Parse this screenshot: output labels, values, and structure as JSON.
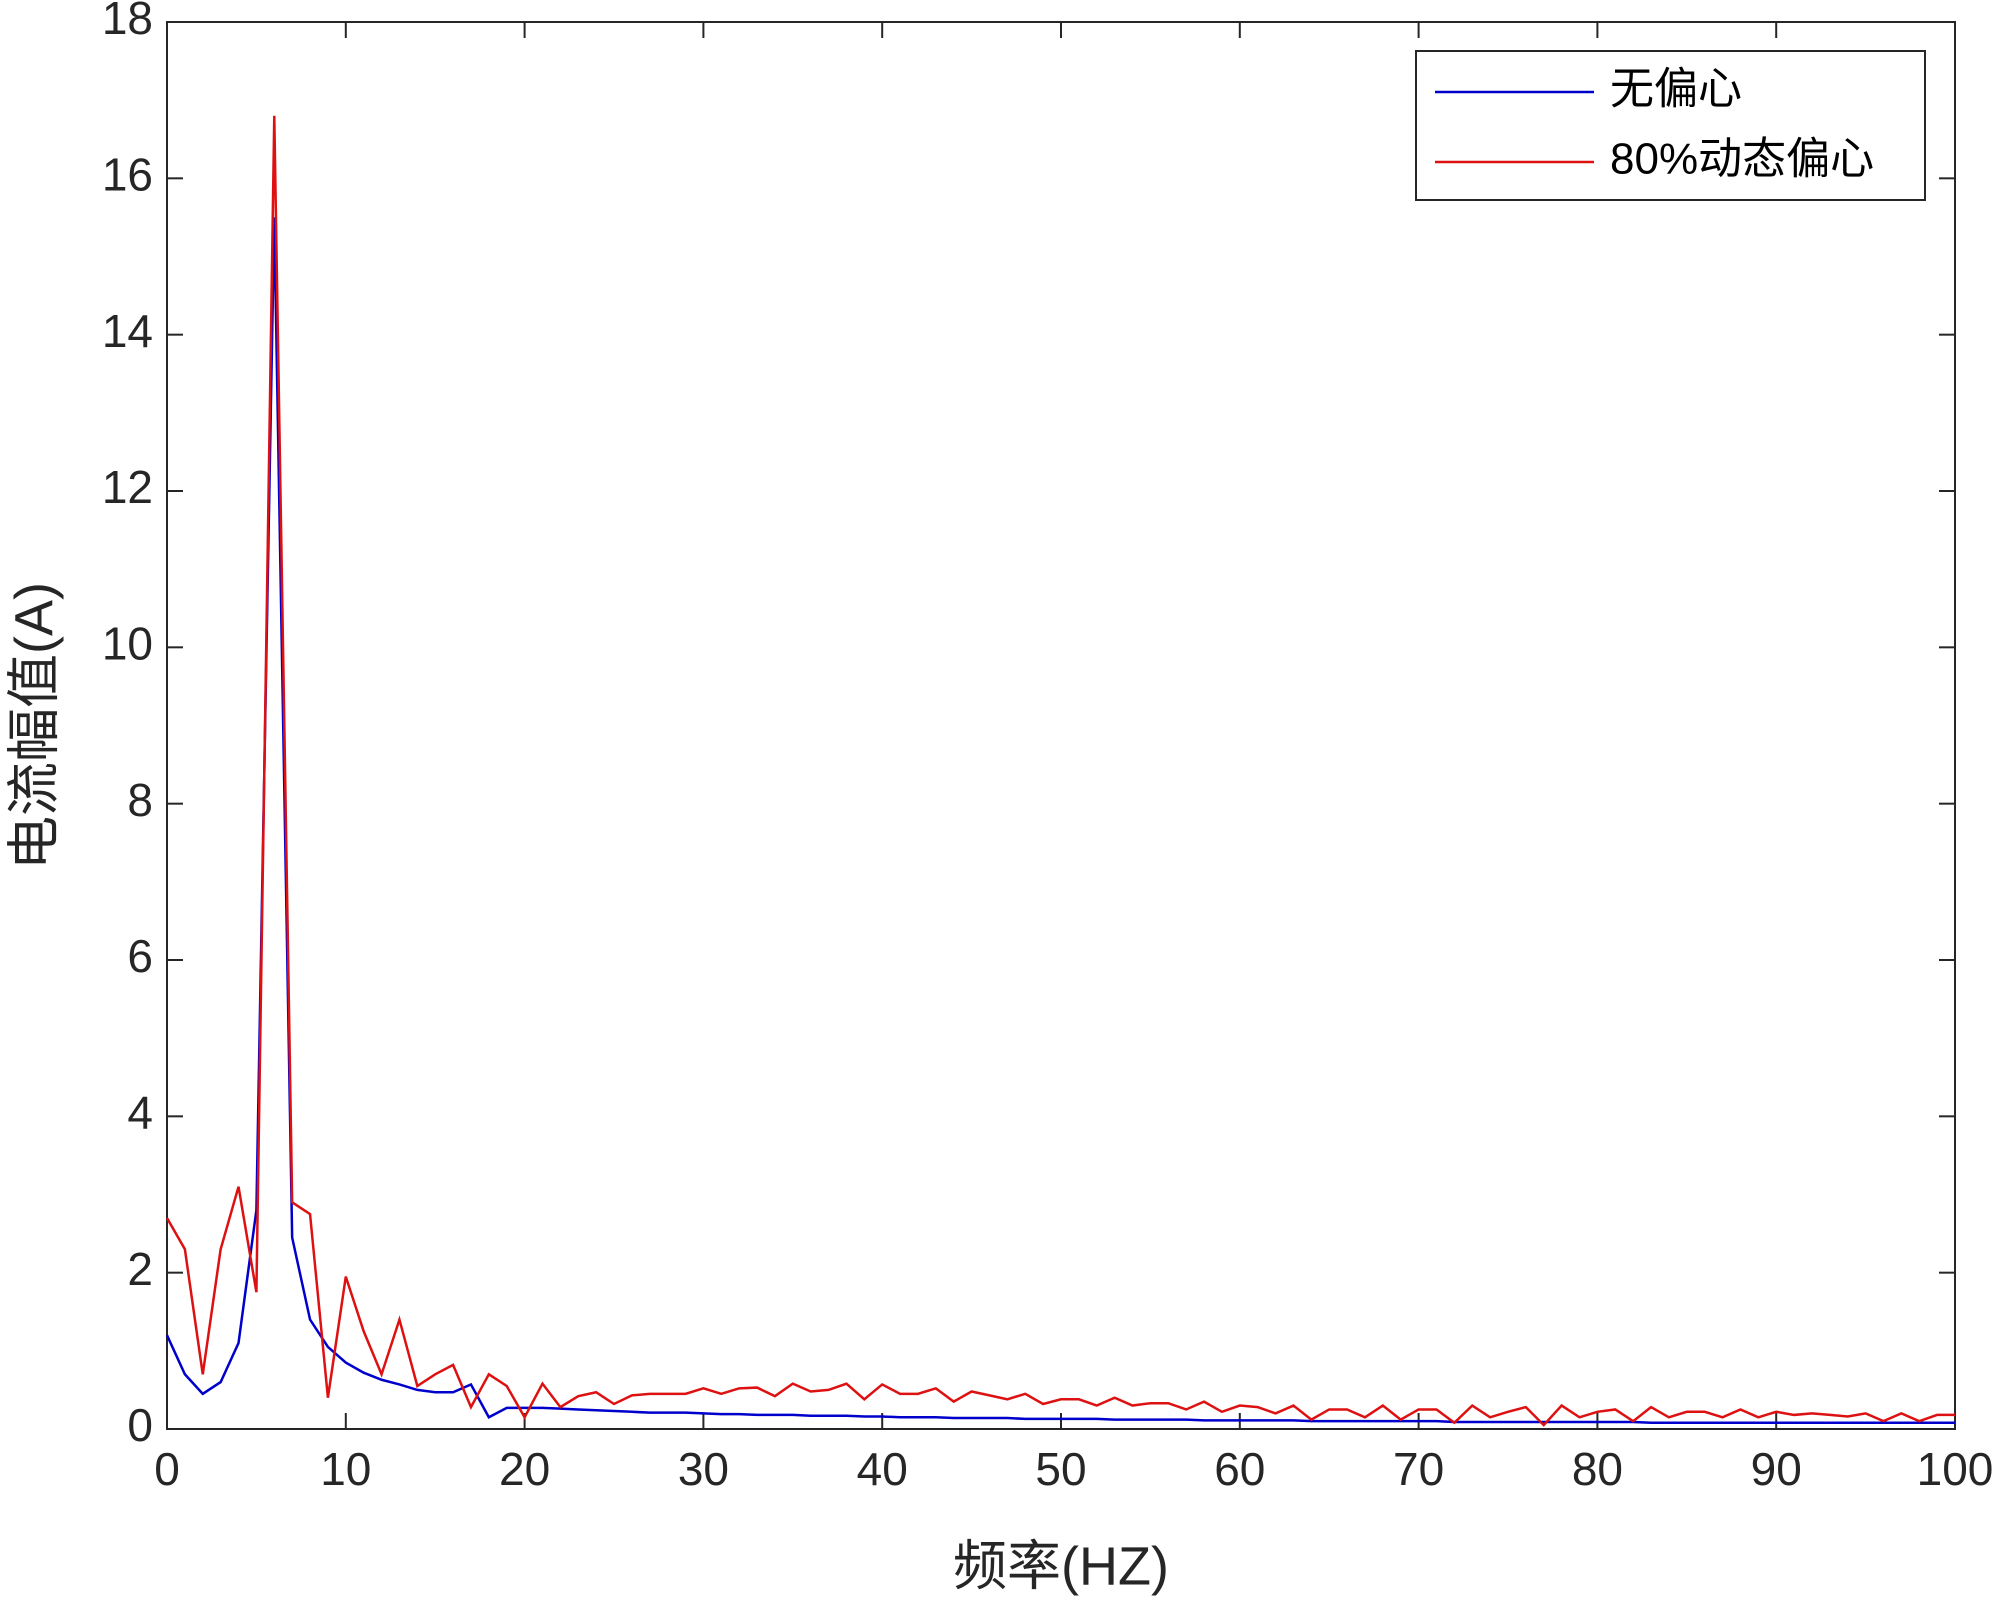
{
  "chart_data": {
    "type": "line",
    "xlabel": "频率(HZ)",
    "ylabel": "电流幅值(A)",
    "x": [
      0,
      1,
      2,
      3,
      4,
      5,
      6,
      7,
      8,
      9,
      10,
      11,
      12,
      13,
      14,
      15,
      16,
      17,
      18,
      19,
      20,
      21,
      22,
      23,
      24,
      25,
      26,
      27,
      28,
      29,
      30,
      31,
      32,
      33,
      34,
      35,
      36,
      37,
      38,
      39,
      40,
      41,
      42,
      43,
      44,
      45,
      46,
      47,
      48,
      49,
      50,
      51,
      52,
      53,
      54,
      55,
      56,
      57,
      58,
      59,
      60,
      61,
      62,
      63,
      64,
      65,
      66,
      67,
      68,
      69,
      70,
      71,
      72,
      73,
      74,
      75,
      76,
      77,
      78,
      79,
      80,
      81,
      82,
      83,
      84,
      85,
      86,
      87,
      88,
      89,
      90,
      91,
      92,
      93,
      94,
      95,
      96,
      97,
      98,
      99,
      100
    ],
    "series": [
      {
        "name": "无偏心",
        "color": "#0000cc",
        "values": [
          1.2,
          0.7,
          0.45,
          0.6,
          1.1,
          2.8,
          15.5,
          2.45,
          1.4,
          1.05,
          0.85,
          0.72,
          0.63,
          0.57,
          0.5,
          0.47,
          0.47,
          0.57,
          0.15,
          0.27,
          0.27,
          0.27,
          0.26,
          0.25,
          0.24,
          0.23,
          0.22,
          0.21,
          0.21,
          0.21,
          0.2,
          0.19,
          0.19,
          0.18,
          0.18,
          0.18,
          0.17,
          0.17,
          0.17,
          0.16,
          0.16,
          0.15,
          0.15,
          0.15,
          0.14,
          0.14,
          0.14,
          0.14,
          0.13,
          0.13,
          0.13,
          0.13,
          0.13,
          0.12,
          0.12,
          0.12,
          0.12,
          0.12,
          0.11,
          0.11,
          0.11,
          0.11,
          0.11,
          0.11,
          0.1,
          0.1,
          0.1,
          0.1,
          0.1,
          0.1,
          0.1,
          0.1,
          0.09,
          0.09,
          0.09,
          0.09,
          0.09,
          0.09,
          0.09,
          0.09,
          0.09,
          0.09,
          0.09,
          0.08,
          0.08,
          0.08,
          0.08,
          0.08,
          0.08,
          0.08,
          0.08,
          0.08,
          0.08,
          0.08,
          0.08,
          0.08,
          0.08,
          0.08,
          0.08,
          0.08,
          0.08
        ]
      },
      {
        "name": "80%动态偏心",
        "color": "#dd1111",
        "values": [
          2.7,
          2.3,
          0.7,
          2.3,
          3.1,
          1.75,
          16.8,
          2.9,
          2.75,
          0.4,
          1.95,
          1.25,
          0.7,
          1.4,
          0.55,
          0.7,
          0.82,
          0.28,
          0.7,
          0.55,
          0.15,
          0.58,
          0.28,
          0.42,
          0.47,
          0.32,
          0.43,
          0.45,
          0.45,
          0.45,
          0.52,
          0.45,
          0.52,
          0.53,
          0.42,
          0.58,
          0.48,
          0.5,
          0.58,
          0.38,
          0.57,
          0.45,
          0.45,
          0.52,
          0.35,
          0.48,
          0.43,
          0.38,
          0.45,
          0.32,
          0.38,
          0.38,
          0.3,
          0.4,
          0.3,
          0.33,
          0.33,
          0.25,
          0.35,
          0.22,
          0.3,
          0.28,
          0.2,
          0.3,
          0.12,
          0.25,
          0.25,
          0.15,
          0.3,
          0.12,
          0.25,
          0.25,
          0.08,
          0.3,
          0.15,
          0.22,
          0.28,
          0.05,
          0.3,
          0.15,
          0.22,
          0.25,
          0.1,
          0.28,
          0.15,
          0.22,
          0.22,
          0.15,
          0.25,
          0.15,
          0.22,
          0.18,
          0.2,
          0.18,
          0.16,
          0.2,
          0.1,
          0.2,
          0.1,
          0.18,
          0.18
        ]
      }
    ],
    "xlim": [
      0,
      100
    ],
    "xticks": [
      0,
      10,
      20,
      30,
      40,
      50,
      60,
      70,
      80,
      90,
      100
    ],
    "ylim": [
      0,
      18
    ],
    "yticks": [
      0,
      2,
      4,
      6,
      8,
      10,
      12,
      14,
      16,
      18
    ],
    "grid": false,
    "legend": "northeast"
  }
}
